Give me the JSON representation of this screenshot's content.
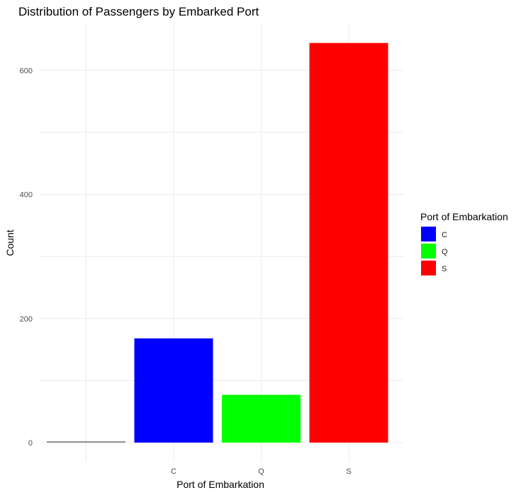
{
  "chart_data": {
    "type": "bar",
    "title": "Distribution of Passengers by Embarked Port",
    "xlabel": "Port of Embarkation",
    "ylabel": "Count",
    "categories": [
      "",
      "C",
      "Q",
      "S"
    ],
    "values": [
      2,
      168,
      77,
      644
    ],
    "bar_colors": [
      "#808080",
      "#0000ff",
      "#00ff00",
      "#ff0000"
    ],
    "ylim": [
      0,
      680
    ],
    "y_ticks": [
      0,
      200,
      400,
      600
    ],
    "y_minor_ticks": [
      100,
      300,
      500
    ],
    "grid": true,
    "legend": {
      "title": "Port of Embarkation",
      "position": "right",
      "items": [
        {
          "label": "C",
          "color": "#0000ff"
        },
        {
          "label": "Q",
          "color": "#00ff00"
        },
        {
          "label": "S",
          "color": "#ff0000"
        }
      ]
    }
  }
}
